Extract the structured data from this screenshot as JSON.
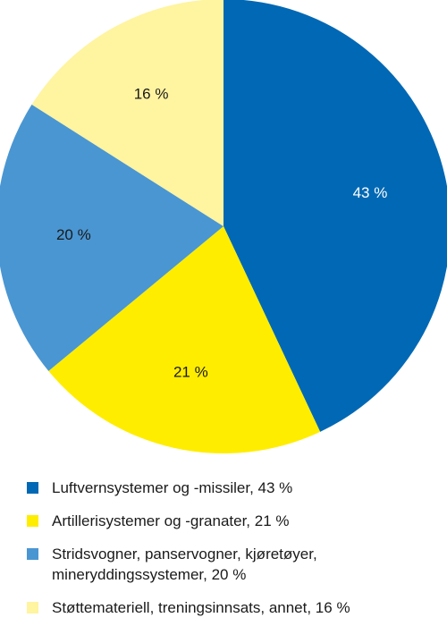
{
  "chart_data": {
    "type": "pie",
    "title": "",
    "slices": [
      {
        "label": "Luftvernsystemer og -missiler, 43 %",
        "value": 43,
        "value_label": "43 %",
        "color": "#0068b4",
        "label_color": "#ffffff"
      },
      {
        "label": "Artillerisystemer og -granater, 21 %",
        "value": 21,
        "value_label": "21 %",
        "color": "#ffed00",
        "label_color": "#1a1a1a"
      },
      {
        "label": "Stridsvogner, panservogner, kjøretøyer,\nmineryddingssystemer, 20 %",
        "value": 20,
        "value_label": "20 %",
        "color": "#4a96d2",
        "label_color": "#1a1a1a"
      },
      {
        "label": "Støttemateriell, treningsinnsats, annet, 16 %",
        "value": 16,
        "value_label": "16 %",
        "color": "#fff4a0",
        "label_color": "#1a1a1a"
      }
    ],
    "start_angle_deg": 0,
    "direction": "clockwise",
    "legend_position": "bottom"
  }
}
